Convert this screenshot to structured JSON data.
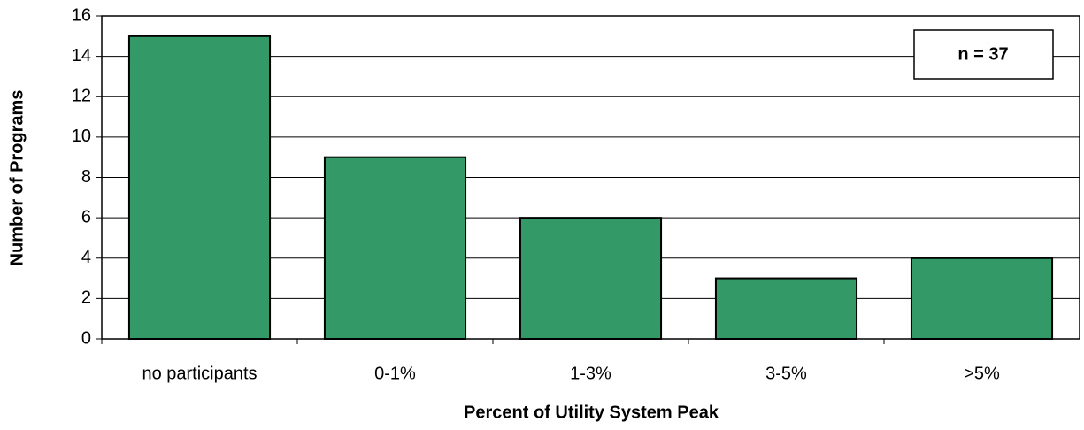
{
  "chart_data": {
    "type": "bar",
    "categories": [
      "no participants",
      "0-1%",
      "1-3%",
      "3-5%",
      ">5%"
    ],
    "values": [
      15,
      9,
      6,
      3,
      4
    ],
    "color": "#339966",
    "xlabel": "Percent of Utility System Peak",
    "ylabel": "Number of Programs",
    "annotation": "n = 37",
    "ylim": [
      0,
      16
    ],
    "yticks": [
      0,
      2,
      4,
      6,
      8,
      10,
      12,
      14,
      16
    ],
    "grid": true
  }
}
